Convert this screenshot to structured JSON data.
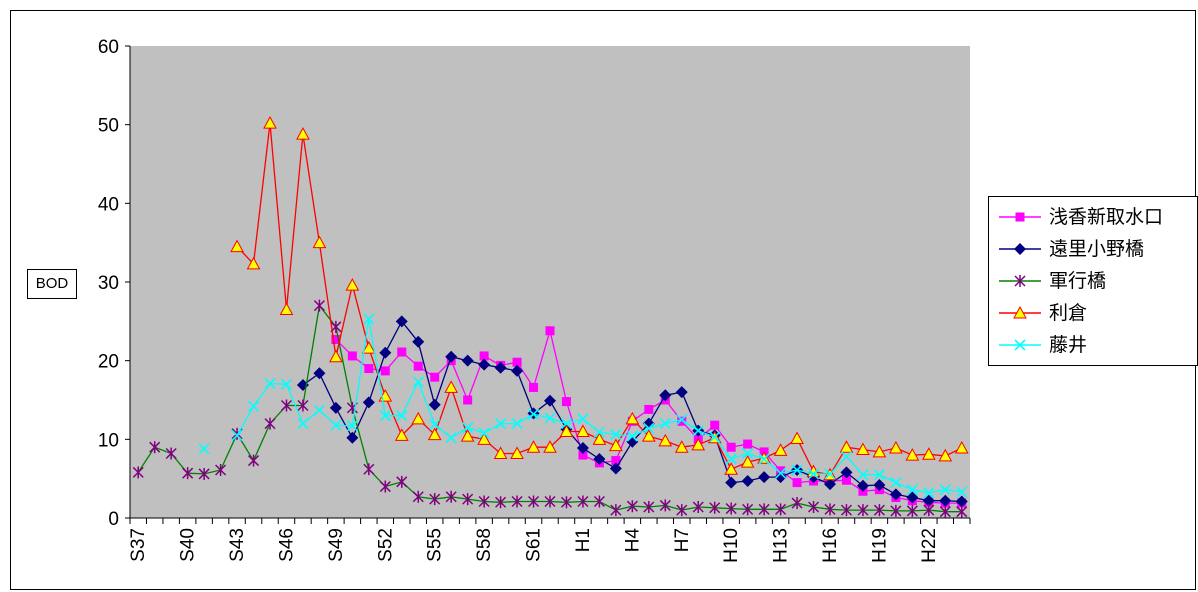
{
  "chart_data": {
    "type": "line",
    "ylabel": "BOD",
    "ylim": [
      0,
      60
    ],
    "yticks": [
      0,
      10,
      20,
      30,
      40,
      50,
      60
    ],
    "grid": false,
    "plot_background": "#c0c0c0",
    "legend_position": "right",
    "categories": [
      "S37",
      "S38",
      "S39",
      "S40",
      "S41",
      "S42",
      "S43",
      "S44",
      "S45",
      "S46",
      "S47",
      "S48",
      "S49",
      "S50",
      "S51",
      "S52",
      "S53",
      "S54",
      "S55",
      "S56",
      "S57",
      "S58",
      "S59",
      "S60",
      "S61",
      "S62",
      "S63",
      "H1",
      "H2",
      "H3",
      "H4",
      "H5",
      "H6",
      "H7",
      "H8",
      "H9",
      "H10",
      "H11",
      "H12",
      "H13",
      "H14",
      "H15",
      "H16",
      "H17",
      "H18",
      "H19",
      "H20",
      "H21",
      "H22",
      "H23",
      "H24"
    ],
    "x_tick_labels": [
      "S37",
      "S40",
      "S43",
      "S46",
      "S49",
      "S52",
      "S55",
      "S58",
      "S61",
      "H1",
      "H4",
      "H7",
      "H10",
      "H13",
      "H16",
      "H19",
      "H22"
    ],
    "series": [
      {
        "name": "浅香新取水口",
        "color": "#ff00ff",
        "marker": "square",
        "values": [
          null,
          null,
          null,
          null,
          null,
          null,
          null,
          null,
          null,
          null,
          null,
          null,
          22.7,
          20.6,
          19,
          18.7,
          21.1,
          19.3,
          17.9,
          20,
          15,
          20.6,
          19.4,
          19.8,
          16.6,
          23.8,
          14.8,
          8,
          7,
          7.3,
          12.3,
          13.8,
          15,
          12.3,
          10,
          11.8,
          9,
          9.4,
          8.4,
          6,
          4.5,
          4.7,
          4.7,
          4.8,
          3.4,
          3.6,
          2.6,
          2.2,
          2,
          1.9,
          1.9
        ]
      },
      {
        "name": "遠里小野橋",
        "color": "#000080",
        "marker": "diamond",
        "values": [
          null,
          null,
          null,
          null,
          null,
          null,
          null,
          null,
          null,
          null,
          16.9,
          18.4,
          14,
          10.2,
          14.7,
          21,
          25,
          22.4,
          14.4,
          20.5,
          20,
          19.5,
          19.1,
          18.7,
          13.3,
          14.9,
          11.3,
          8.9,
          7.5,
          6.3,
          9.7,
          12,
          15.6,
          16,
          11.1,
          10.5,
          4.5,
          4.7,
          5.2,
          5.2,
          6.1,
          5.2,
          4.3,
          5.8,
          4.1,
          4.2,
          3,
          2.6,
          2.2,
          2.2,
          2.1
        ]
      },
      {
        "name": "軍行橋",
        "color": "#008000",
        "marker": "star",
        "marker_color": "#800080",
        "values": [
          5.8,
          9,
          8.2,
          5.7,
          5.6,
          6.1,
          10.7,
          7.3,
          12,
          14.3,
          14.3,
          27,
          24.3,
          14,
          6.2,
          4,
          4.6,
          2.7,
          2.4,
          2.7,
          2.4,
          2.1,
          2,
          2.1,
          2.1,
          2.1,
          2,
          2.1,
          2.1,
          1,
          1.5,
          1.4,
          1.6,
          1,
          1.4,
          1.3,
          1.2,
          1.1,
          1.1,
          1.1,
          1.9,
          1.4,
          1.1,
          1,
          1,
          1,
          0.9,
          0.9,
          1,
          0.8,
          0.8
        ]
      },
      {
        "name": "利倉",
        "color": "#ff0000",
        "marker": "triangle",
        "marker_fill": "#ffff00",
        "values": [
          null,
          null,
          null,
          null,
          null,
          null,
          34.5,
          32.3,
          50.2,
          26.5,
          48.8,
          35,
          20.5,
          29.6,
          21.6,
          15.5,
          10.5,
          12.6,
          10.6,
          16.6,
          10.4,
          10,
          8.2,
          8.2,
          9,
          9,
          11,
          11,
          10,
          9.2,
          12.6,
          10.4,
          9.8,
          9,
          9.3,
          10.2,
          6.2,
          7.1,
          7.6,
          8.6,
          10.1,
          5.9,
          5.5,
          9,
          8.7,
          8.4,
          8.9,
          8,
          8.1,
          7.9,
          8.9
        ]
      },
      {
        "name": "藤井",
        "color": "#00ffff",
        "marker": "x",
        "values": [
          null,
          null,
          null,
          null,
          8.8,
          null,
          10.5,
          14.2,
          17.1,
          17,
          12,
          13.7,
          11.8,
          11.7,
          25.3,
          13,
          13,
          17.3,
          11.9,
          10.2,
          11.5,
          10.8,
          12,
          12,
          13.2,
          12.7,
          12,
          12.6,
          10.9,
          10.6,
          10.4,
          11.4,
          12,
          12.5,
          11.1,
          10.3,
          7.5,
          8.2,
          7.5,
          5.7,
          6.1,
          5.6,
          5.6,
          7.8,
          5.5,
          5.5,
          4.5,
          3.6,
          3.2,
          3.6,
          3.3
        ]
      }
    ]
  }
}
